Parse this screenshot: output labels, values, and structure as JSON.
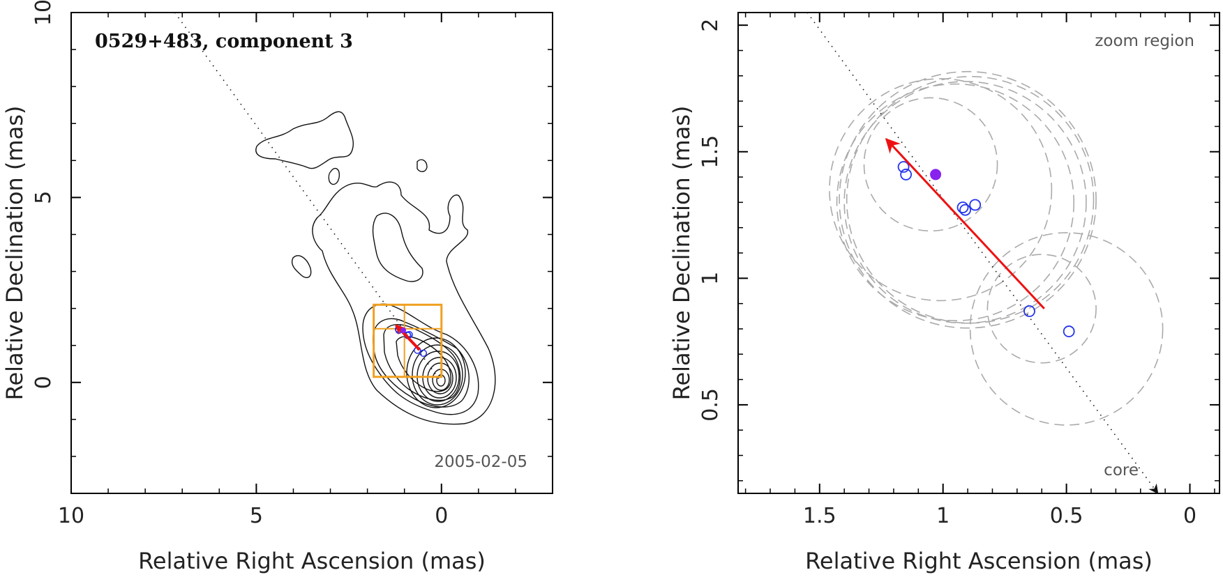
{
  "chart_data": [
    {
      "type": "scatter",
      "panel": "left",
      "title": "0529+483, component 3",
      "date": "2005-02-05",
      "xlabel": "Relative Right Ascension (mas)",
      "ylabel": "Relative Declination (mas)",
      "xlim": [
        10,
        -3
      ],
      "ylim": [
        -3,
        10
      ],
      "xticks": [
        {
          "value": 10,
          "label": "10"
        },
        {
          "value": 5,
          "label": "5"
        },
        {
          "value": 0,
          "label": "0"
        }
      ],
      "yticks": [
        {
          "value": 0,
          "label": "0"
        },
        {
          "value": 5,
          "label": "5"
        },
        {
          "value": 10,
          "label": "10"
        }
      ],
      "jet_axis": {
        "from": [
          7.2,
          10
        ],
        "to": [
          0,
          0
        ]
      },
      "zoom_box": {
        "ra": [
          1.83,
          0
        ],
        "dec": [
          0.15,
          2.1
        ],
        "cross_ra": 1.0,
        "cross_dec": 1.45
      },
      "motion_vector": {
        "from": [
          0.59,
          0.88
        ],
        "to": [
          1.23,
          1.55
        ],
        "color": "#ee1111"
      },
      "components": [
        {
          "ra": 1.16,
          "dec": 1.44
        },
        {
          "ra": 1.15,
          "dec": 1.41
        },
        {
          "ra": 0.92,
          "dec": 1.28
        },
        {
          "ra": 0.91,
          "dec": 1.27
        },
        {
          "ra": 0.87,
          "dec": 1.29
        },
        {
          "ra": 0.65,
          "dec": 0.87
        },
        {
          "ra": 0.49,
          "dec": 0.79
        }
      ],
      "current_component": {
        "ra": 1.03,
        "dec": 1.41
      }
    },
    {
      "type": "scatter",
      "panel": "right",
      "title": "zoom region",
      "core_label": "core",
      "xlabel": "Relative Right Ascension (mas)",
      "ylabel": "Relative Declination (mas)",
      "xlim": [
        1.83,
        -0.12
      ],
      "ylim": [
        0.15,
        2.05
      ],
      "xticks": [
        {
          "value": 1.5,
          "label": "1.5"
        },
        {
          "value": 1.0,
          "label": "1"
        },
        {
          "value": 0.5,
          "label": "0.5"
        },
        {
          "value": 0.0,
          "label": "0"
        }
      ],
      "yticks": [
        {
          "value": 0.5,
          "label": "0.5"
        },
        {
          "value": 1.0,
          "label": "1"
        },
        {
          "value": 1.5,
          "label": "1.5"
        },
        {
          "value": 2.0,
          "label": "2"
        }
      ],
      "jet_axis": {
        "from": [
          1.55,
          2.05
        ],
        "to": [
          0.13,
          0.15
        ]
      },
      "motion_vector": {
        "from": [
          0.59,
          0.88
        ],
        "to": [
          1.23,
          1.55
        ],
        "color": "#ee1111"
      },
      "components": [
        {
          "ra": 1.16,
          "dec": 1.44
        },
        {
          "ra": 1.15,
          "dec": 1.41
        },
        {
          "ra": 0.92,
          "dec": 1.28
        },
        {
          "ra": 0.91,
          "dec": 1.27
        },
        {
          "ra": 0.87,
          "dec": 1.29
        },
        {
          "ra": 0.65,
          "dec": 0.87
        },
        {
          "ra": 0.49,
          "dec": 0.79
        }
      ],
      "current_component": {
        "ra": 1.03,
        "dec": 1.41,
        "color": "#8822ee"
      },
      "fwhm_circles": [
        {
          "ra": 1.05,
          "dec": 1.45,
          "r": 0.27
        },
        {
          "ra": 1.01,
          "dec": 1.35,
          "r": 0.45
        },
        {
          "ra": 0.95,
          "dec": 1.3,
          "r": 0.48
        },
        {
          "ra": 0.91,
          "dec": 1.3,
          "r": 0.49
        },
        {
          "ra": 0.89,
          "dec": 1.31,
          "r": 0.5
        },
        {
          "ra": 0.9,
          "dec": 1.31,
          "r": 0.52
        },
        {
          "ra": 0.6,
          "dec": 0.88,
          "r": 0.22
        },
        {
          "ra": 0.5,
          "dec": 0.8,
          "r": 0.39
        }
      ]
    }
  ]
}
